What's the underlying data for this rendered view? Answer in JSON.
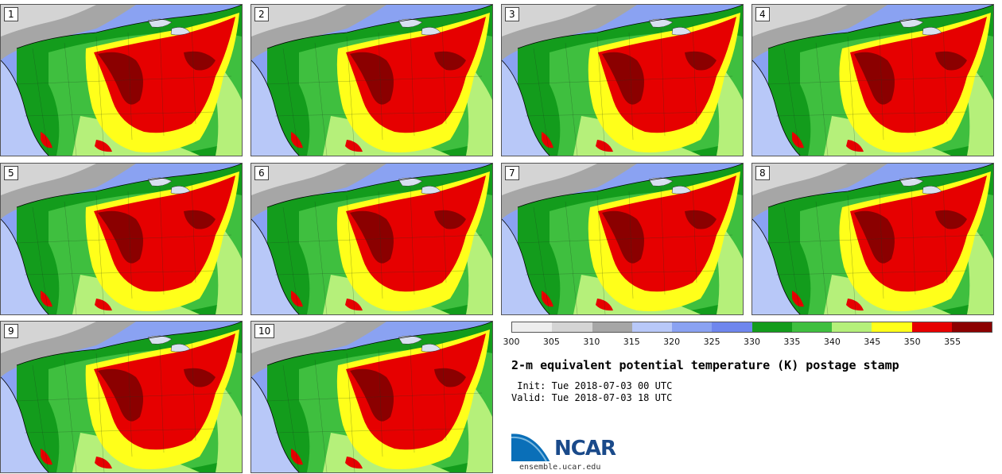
{
  "panels": [
    {
      "label": "1"
    },
    {
      "label": "2"
    },
    {
      "label": "3"
    },
    {
      "label": "4"
    },
    {
      "label": "5"
    },
    {
      "label": "6"
    },
    {
      "label": "7"
    },
    {
      "label": "8"
    },
    {
      "label": "9"
    },
    {
      "label": "10"
    }
  ],
  "colorbar": {
    "colors": [
      "#eeeeee",
      "#d4d4d4",
      "#a6a6a6",
      "#b8c8f8",
      "#8aa2f2",
      "#6f86ee",
      "#139c1c",
      "#3fbf3f",
      "#b5f07a",
      "#ffff1a",
      "#e60000",
      "#8b0000"
    ],
    "ticks": [
      "300",
      "305",
      "310",
      "315",
      "320",
      "325",
      "330",
      "335",
      "340",
      "345",
      "350",
      "355"
    ]
  },
  "title": "2-m equivalent potential temperature (K) postage stamp",
  "init": " Init: Tue 2018-07-03 00 UTC",
  "valid": "Valid: Tue 2018-07-03 18 UTC",
  "logo": {
    "text": "NCAR",
    "site": "ensemble.ucar.edu"
  }
}
